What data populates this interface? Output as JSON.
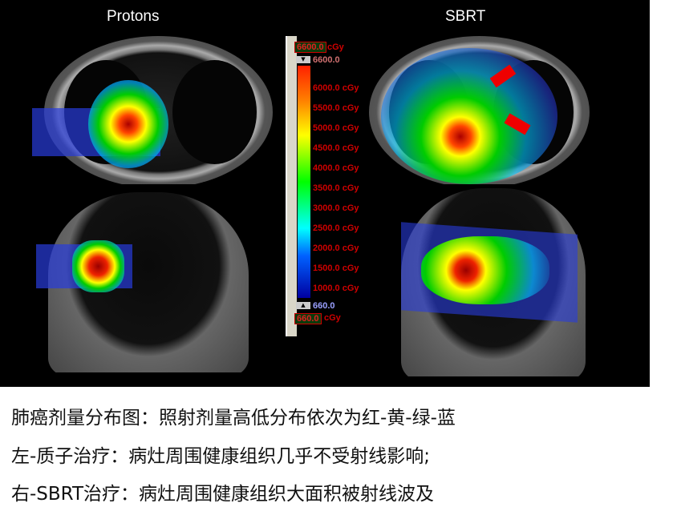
{
  "figure": {
    "left_title": "Protons",
    "right_title": "SBRT",
    "colorbar": {
      "max_box": "6600.0",
      "max_unit": "cGy",
      "max_marker": "6600.0",
      "ticks": [
        "6000.0 cGy",
        "5500.0 cGy",
        "5000.0 cGy",
        "4500.0 cGy",
        "4000.0 cGy",
        "3500.0 cGy",
        "3000.0 cGy",
        "2500.0 cGy",
        "2000.0 cGy",
        "1500.0 cGy",
        "1000.0 cGy"
      ],
      "min_marker": "660.0",
      "min_box": "660.0",
      "min_unit": "cGy",
      "colors": [
        "#ff2000",
        "#ff8000",
        "#ffff00",
        "#00ff00",
        "#00ffff",
        "#0060ff",
        "#0000a0"
      ]
    }
  },
  "caption": {
    "line1": "肺癌剂量分布图：照射剂量高低分布依次为红-黄-绿-蓝",
    "line2": "左-质子治疗：病灶周围健康组织几乎不受射线影响;",
    "line3": "右-SBRT治疗：病灶周围健康组织大面积被射线波及"
  }
}
